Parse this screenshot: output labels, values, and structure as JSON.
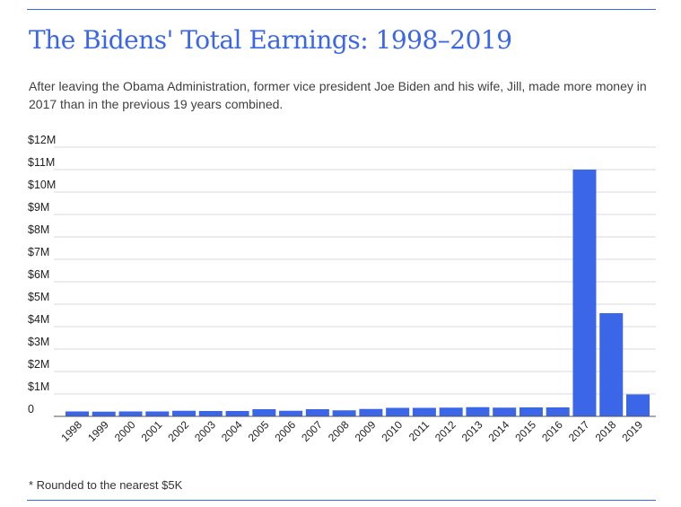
{
  "title": "The Bidens' Total Earnings: 1998–2019",
  "subtitle": "After leaving the Obama Administration, former vice president Joe Biden and his wife, Jill, made more money in 2017 than in the previous 19 years combined.",
  "footnote": "* Rounded to the nearest $5K",
  "colors": {
    "accent": "#3b66e8",
    "bar": "#3b66e8",
    "grid": "#d9d9d9",
    "axis": "#555555"
  },
  "chart_data": {
    "type": "bar",
    "title": "The Bidens' Total Earnings: 1998–2019",
    "xlabel": "",
    "ylabel": "",
    "ylim": [
      0,
      12
    ],
    "y_unit": "millions of dollars",
    "grid": true,
    "y_ticks": [
      {
        "value": 0,
        "label": "0"
      },
      {
        "value": 1,
        "label": "$1M"
      },
      {
        "value": 2,
        "label": "$2M"
      },
      {
        "value": 3,
        "label": "$3M"
      },
      {
        "value": 4,
        "label": "$4M"
      },
      {
        "value": 5,
        "label": "$5M"
      },
      {
        "value": 6,
        "label": "$6M"
      },
      {
        "value": 7,
        "label": "$7M"
      },
      {
        "value": 8,
        "label": "$8M"
      },
      {
        "value": 9,
        "label": "$9M"
      },
      {
        "value": 10,
        "label": "$10M"
      },
      {
        "value": 11,
        "label": "$11M"
      },
      {
        "value": 12,
        "label": "$12M"
      }
    ],
    "categories": [
      "1998",
      "1999",
      "2000",
      "2001",
      "2002",
      "2003",
      "2004",
      "2005",
      "2006",
      "2007",
      "2008",
      "2009",
      "2010",
      "2011",
      "2012",
      "2013",
      "2014",
      "2015",
      "2016",
      "2017",
      "2018",
      "2019"
    ],
    "values": [
      0.22,
      0.21,
      0.22,
      0.22,
      0.25,
      0.24,
      0.24,
      0.32,
      0.25,
      0.32,
      0.27,
      0.33,
      0.38,
      0.38,
      0.39,
      0.41,
      0.39,
      0.4,
      0.4,
      11.0,
      4.6,
      0.98
    ]
  }
}
